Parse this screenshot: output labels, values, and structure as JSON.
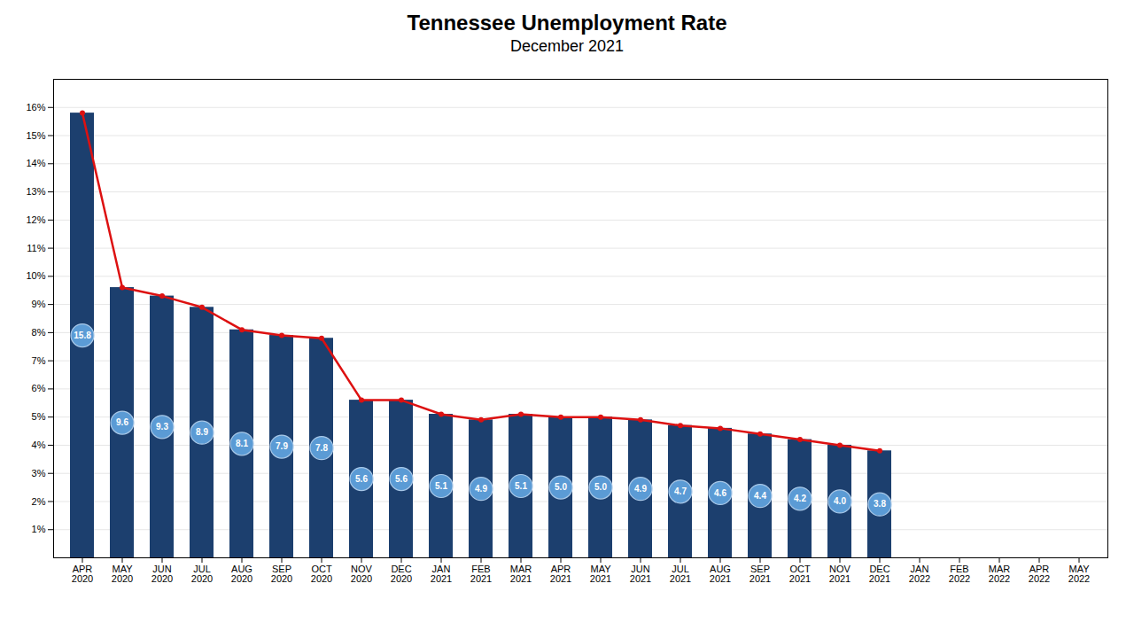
{
  "chart_data": {
    "type": "bar",
    "title": "Tennessee Unemployment Rate",
    "subtitle": "December 2021",
    "categories": [
      "APR\n2020",
      "MAY\n2020",
      "JUN\n2020",
      "JUL\n2020",
      "AUG\n2020",
      "SEP\n2020",
      "OCT\n2020",
      "NOV\n2020",
      "DEC\n2020",
      "JAN\n2021",
      "FEB\n2021",
      "MAR\n2021",
      "APR\n2021",
      "MAY\n2021",
      "JUN\n2021",
      "JUL\n2021",
      "AUG\n2021",
      "SEP\n2021",
      "OCT\n2021",
      "NOV\n2021",
      "DEC\n2021",
      "JAN\n2022",
      "FEB\n2022",
      "MAR\n2022",
      "APR\n2022",
      "MAY\n2022"
    ],
    "series": [
      {
        "type": "bar",
        "color": "#1c3f6e",
        "values": [
          15.8,
          9.6,
          9.3,
          8.9,
          8.1,
          7.9,
          7.8,
          5.6,
          5.6,
          5.1,
          4.9,
          5.1,
          5.0,
          5.0,
          4.9,
          4.7,
          4.6,
          4.4,
          4.2,
          4.0,
          3.8,
          null,
          null,
          null,
          null,
          null
        ],
        "value_labels": [
          "15.8",
          "9.6",
          "9.3",
          "8.9",
          "8.1",
          "7.9",
          "7.8",
          "5.6",
          "5.6",
          "5.1",
          "4.9",
          "5.1",
          "5.0",
          "5.0",
          "4.9",
          "4.7",
          "4.6",
          "4.4",
          "4.2",
          "4.0",
          "3.8",
          null,
          null,
          null,
          null,
          null
        ]
      },
      {
        "type": "line",
        "color": "#dd1111",
        "marker": "circle",
        "values": [
          15.8,
          9.6,
          9.3,
          8.9,
          8.1,
          7.9,
          7.8,
          5.6,
          5.6,
          5.1,
          4.9,
          5.1,
          5.0,
          5.0,
          4.9,
          4.7,
          4.6,
          4.4,
          4.2,
          4.0,
          3.8,
          null,
          null,
          null,
          null,
          null
        ]
      }
    ],
    "data_labels": true,
    "ylim": [
      0,
      17
    ],
    "yticks": [
      {
        "value": 1,
        "label": "1%"
      },
      {
        "value": 2,
        "label": "2%"
      },
      {
        "value": 3,
        "label": "3%"
      },
      {
        "value": 4,
        "label": "4%"
      },
      {
        "value": 5,
        "label": "5%"
      },
      {
        "value": 6,
        "label": "6%"
      },
      {
        "value": 7,
        "label": "7%"
      },
      {
        "value": 8,
        "label": "8%"
      },
      {
        "value": 9,
        "label": "9%"
      },
      {
        "value": 10,
        "label": "10%"
      },
      {
        "value": 11,
        "label": "11%"
      },
      {
        "value": 12,
        "label": "12%"
      },
      {
        "value": 13,
        "label": "13%"
      },
      {
        "value": 14,
        "label": "14%"
      },
      {
        "value": 15,
        "label": "15%"
      },
      {
        "value": 16,
        "label": "16%"
      }
    ],
    "grid": true
  }
}
